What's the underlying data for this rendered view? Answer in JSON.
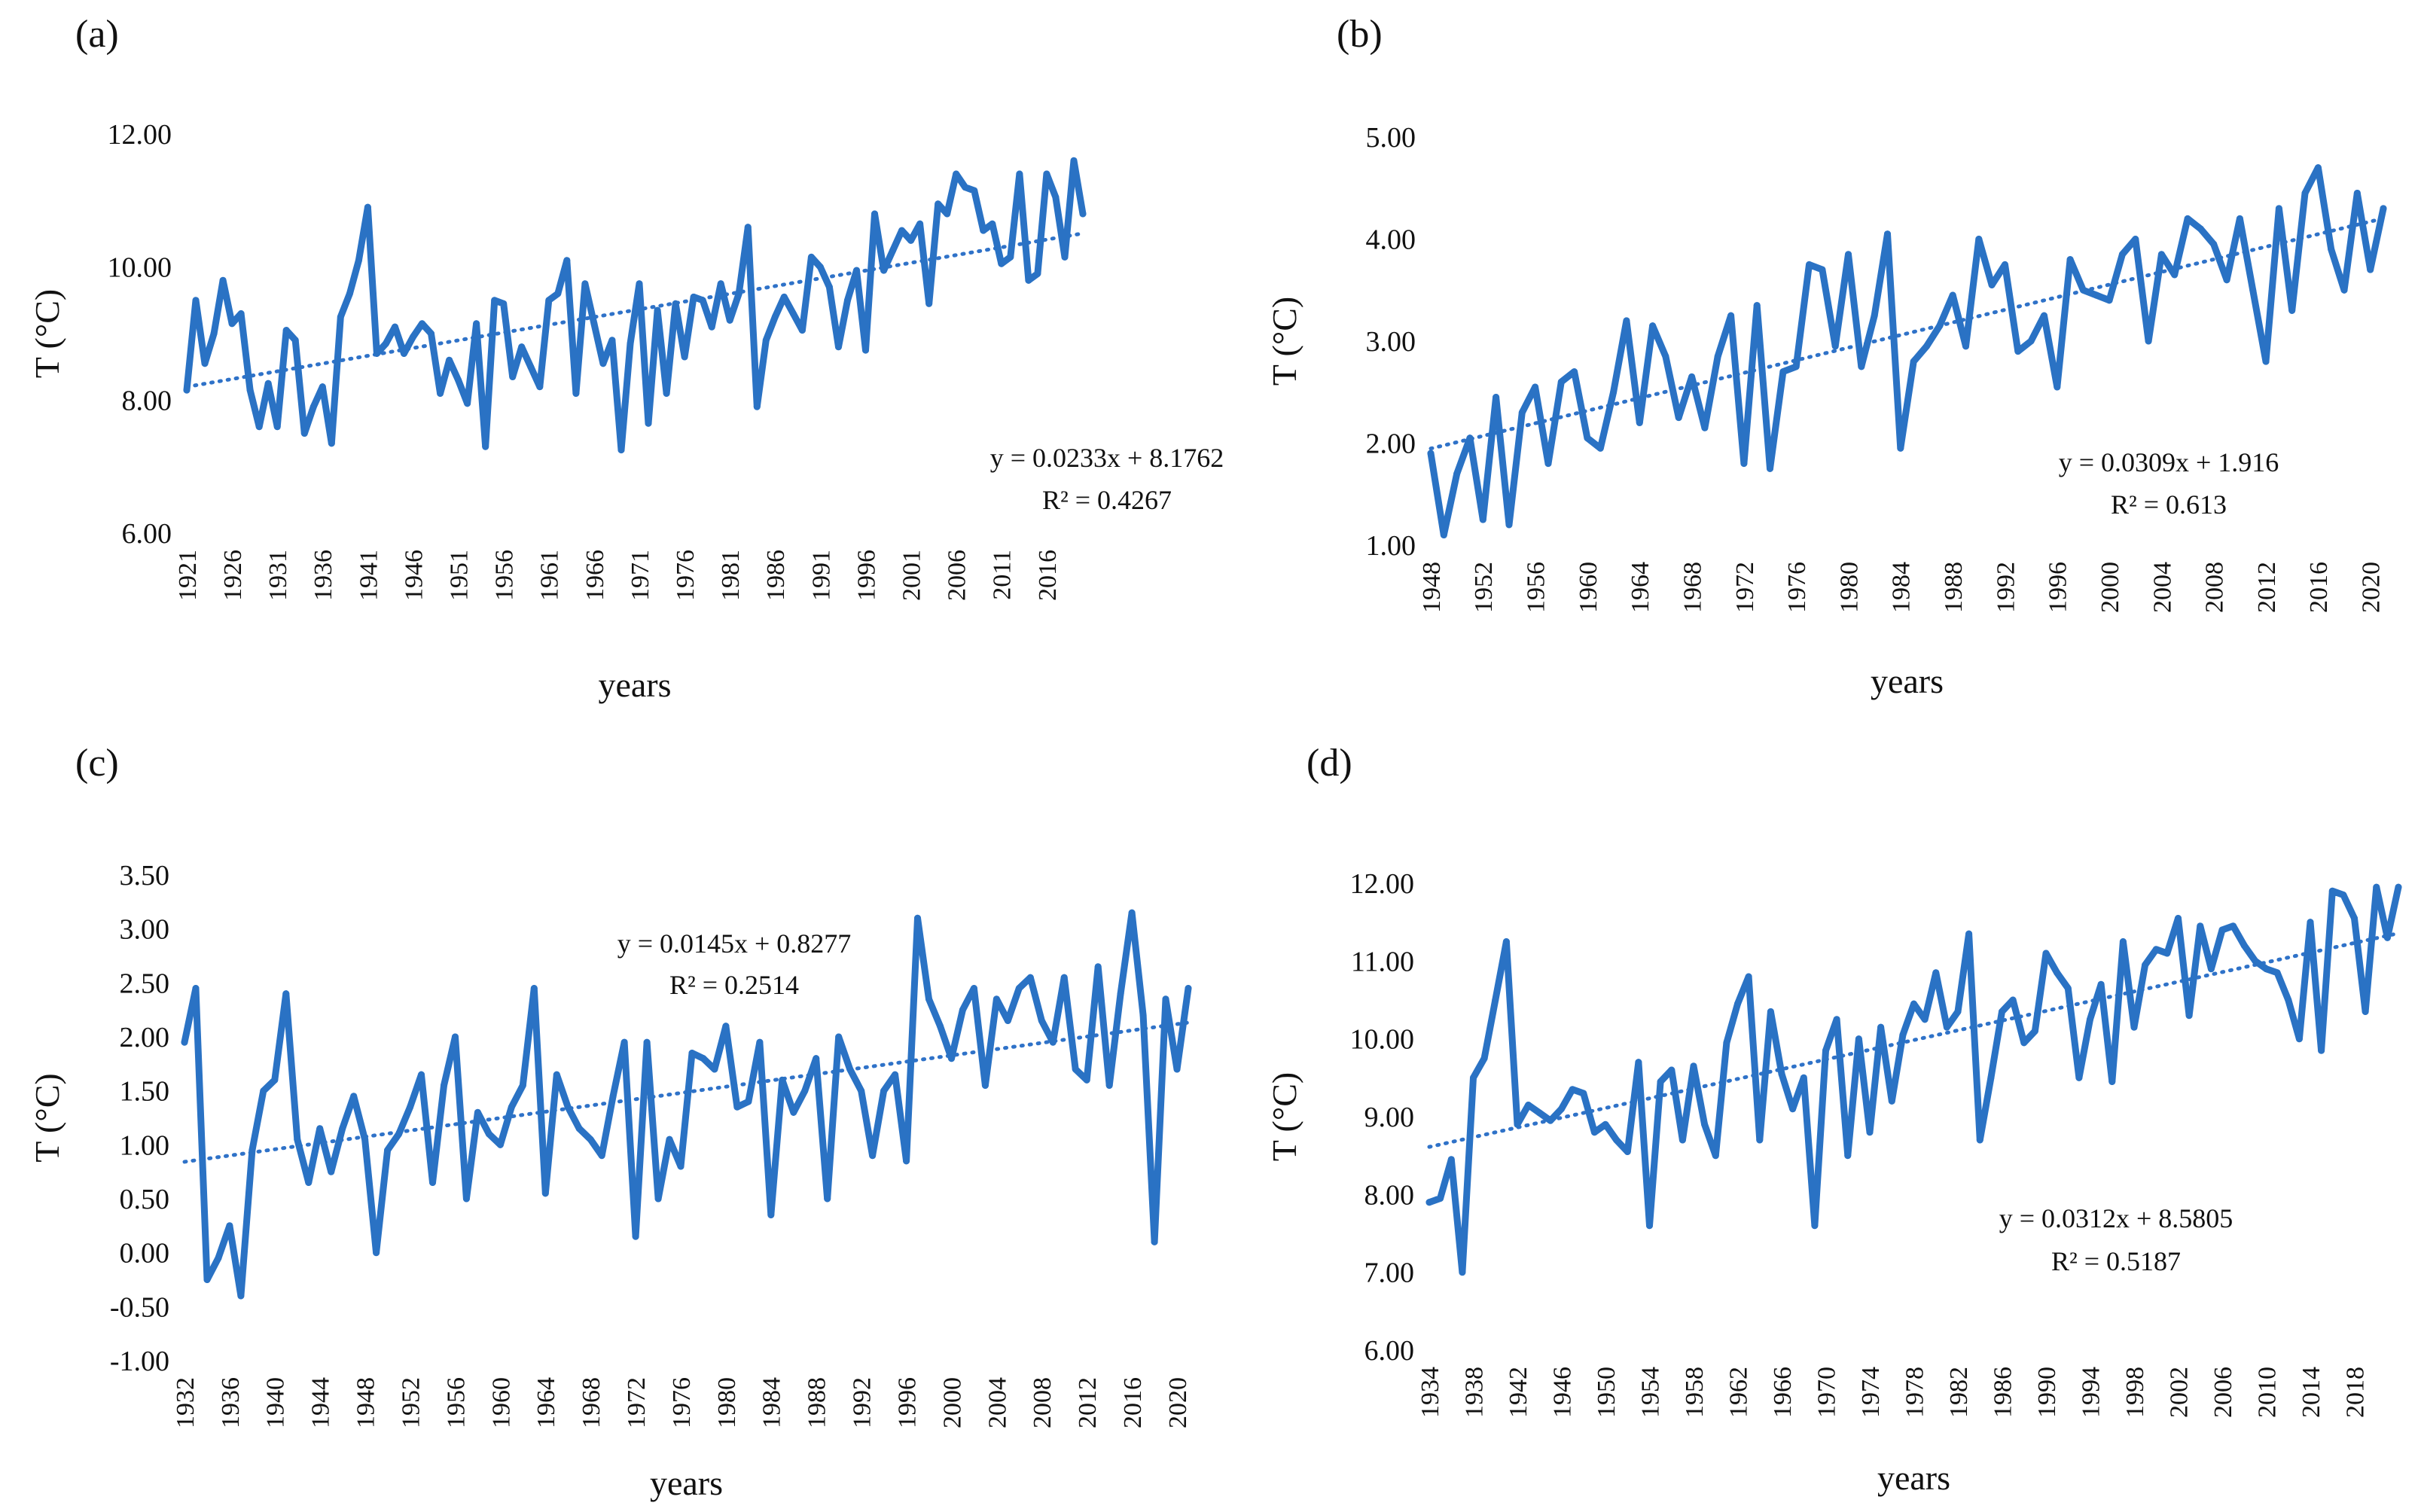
{
  "colors": {
    "series": "#2a72c4",
    "trend": "#2f72c8",
    "text": "#111111"
  },
  "chart_data": [
    {
      "type": "line",
      "panel_label": "(a)",
      "xlabel": "years",
      "ylabel": "T (°C)",
      "ylim": [
        6,
        12
      ],
      "y_ticks": [
        "6.00",
        "8.00",
        "10.00",
        "12.00"
      ],
      "x_start": 1921,
      "x_ticks": [
        "1921",
        "1926",
        "1931",
        "1936",
        "1941",
        "1946",
        "1951",
        "1956",
        "1961",
        "1966",
        "1971",
        "1976",
        "1981",
        "1986",
        "1991",
        "1996",
        "2001",
        "2006",
        "2011",
        "2016"
      ],
      "trendline": {
        "slope": 0.0233,
        "intercept": 8.1762,
        "equation": "y = 0.0233x + 8.1762",
        "r2": "R² = 0.4267"
      },
      "values": [
        8.15,
        9.5,
        8.55,
        9.0,
        9.8,
        9.15,
        9.3,
        8.15,
        7.6,
        8.25,
        7.6,
        9.05,
        8.9,
        7.5,
        7.9,
        8.2,
        7.35,
        9.25,
        9.6,
        10.1,
        10.9,
        8.7,
        8.85,
        9.1,
        8.7,
        8.95,
        9.15,
        9.0,
        8.1,
        8.6,
        8.3,
        7.95,
        9.15,
        7.3,
        9.5,
        9.45,
        8.35,
        8.8,
        8.5,
        8.2,
        9.5,
        9.6,
        10.1,
        8.1,
        9.75,
        9.15,
        8.55,
        8.9,
        7.25,
        8.85,
        9.75,
        7.65,
        9.35,
        8.1,
        9.45,
        8.65,
        9.55,
        9.5,
        9.1,
        9.75,
        9.2,
        9.6,
        10.6,
        7.9,
        8.9,
        9.25,
        9.55,
        9.3,
        9.05,
        10.15,
        10.0,
        9.7,
        8.8,
        9.5,
        9.95,
        8.75,
        10.8,
        9.95,
        10.25,
        10.55,
        10.4,
        10.65,
        9.45,
        10.95,
        10.8,
        11.4,
        11.2,
        11.15,
        10.55,
        10.65,
        10.05,
        10.15,
        11.4,
        9.8,
        9.9,
        11.4,
        11.05,
        10.15,
        11.6,
        10.8
      ]
    },
    {
      "type": "line",
      "panel_label": "(b)",
      "xlabel": "years",
      "ylabel": "T (°C)",
      "ylim": [
        1,
        5
      ],
      "y_ticks": [
        "1.00",
        "2.00",
        "3.00",
        "4.00",
        "5.00"
      ],
      "x_start": 1948,
      "x_ticks": [
        "1948",
        "1952",
        "1956",
        "1960",
        "1964",
        "1968",
        "1972",
        "1976",
        "1980",
        "1984",
        "1988",
        "1992",
        "1996",
        "2000",
        "2004",
        "2008",
        "2012",
        "2016",
        "2020"
      ],
      "trendline": {
        "slope": 0.0309,
        "intercept": 1.916,
        "equation": "y = 0.0309x + 1.916",
        "r2": "R² = 0.613"
      },
      "values": [
        1.9,
        1.1,
        1.7,
        2.05,
        1.25,
        2.45,
        1.2,
        2.3,
        2.55,
        1.8,
        2.6,
        2.7,
        2.05,
        1.95,
        2.5,
        3.2,
        2.2,
        3.15,
        2.85,
        2.25,
        2.65,
        2.15,
        2.85,
        3.25,
        1.8,
        3.35,
        1.75,
        2.7,
        2.75,
        3.75,
        3.7,
        2.95,
        3.85,
        2.75,
        3.25,
        4.05,
        1.95,
        2.8,
        2.95,
        3.15,
        3.45,
        2.95,
        4.0,
        3.55,
        3.75,
        2.9,
        3.0,
        3.25,
        2.55,
        3.8,
        3.5,
        3.45,
        3.4,
        3.85,
        4.0,
        3.0,
        3.85,
        3.65,
        4.2,
        4.1,
        3.95,
        3.6,
        4.2,
        3.5,
        2.8,
        4.3,
        3.3,
        4.45,
        4.7,
        3.9,
        3.5,
        4.45,
        3.7,
        4.3
      ]
    },
    {
      "type": "line",
      "panel_label": "(c)",
      "xlabel": "years",
      "ylabel": "T (°C)",
      "ylim": [
        -1,
        3.5
      ],
      "y_ticks": [
        "-1.00",
        "-0.50",
        "0.00",
        "0.50",
        "1.00",
        "1.50",
        "2.00",
        "2.50",
        "3.00",
        "3.50"
      ],
      "x_start": 1932,
      "x_ticks": [
        "1932",
        "1936",
        "1940",
        "1944",
        "1948",
        "1952",
        "1956",
        "1960",
        "1964",
        "1968",
        "1972",
        "1976",
        "1980",
        "1984",
        "1988",
        "1992",
        "1996",
        "2000",
        "2004",
        "2008",
        "2012",
        "2016",
        "2020"
      ],
      "trendline": {
        "slope": 0.0145,
        "intercept": 0.8277,
        "equation": "y = 0.0145x + 0.8277",
        "r2": "R² = 0.2514"
      },
      "values": [
        1.95,
        2.45,
        -0.25,
        -0.05,
        0.25,
        -0.4,
        0.95,
        1.5,
        1.6,
        2.4,
        1.05,
        0.65,
        1.15,
        0.75,
        1.15,
        1.45,
        1.05,
        0.0,
        0.95,
        1.1,
        1.35,
        1.65,
        0.65,
        1.55,
        2.0,
        0.5,
        1.3,
        1.1,
        1.0,
        1.35,
        1.55,
        2.45,
        0.55,
        1.65,
        1.35,
        1.15,
        1.05,
        0.9,
        1.45,
        1.95,
        0.15,
        1.95,
        0.5,
        1.05,
        0.8,
        1.85,
        1.8,
        1.7,
        2.1,
        1.35,
        1.4,
        1.95,
        0.35,
        1.6,
        1.3,
        1.5,
        1.8,
        0.5,
        2.0,
        1.7,
        1.5,
        0.9,
        1.5,
        1.65,
        0.85,
        3.1,
        2.35,
        2.1,
        1.8,
        2.25,
        2.45,
        1.55,
        2.35,
        2.15,
        2.45,
        2.55,
        2.15,
        1.95,
        2.55,
        1.7,
        1.6,
        2.65,
        1.55,
        2.4,
        3.15,
        2.2,
        0.1,
        2.35,
        1.7,
        2.45
      ]
    },
    {
      "type": "line",
      "panel_label": "(d)",
      "xlabel": "years",
      "ylabel": "T (°C)",
      "ylim": [
        6,
        12
      ],
      "y_ticks": [
        "6.00",
        "7.00",
        "8.00",
        "9.00",
        "10.00",
        "11.00",
        "12.00"
      ],
      "x_start": 1934,
      "x_ticks": [
        "1934",
        "1938",
        "1942",
        "1946",
        "1950",
        "1954",
        "1958",
        "1962",
        "1966",
        "1970",
        "1974",
        "1978",
        "1982",
        "1986",
        "1990",
        "1994",
        "1998",
        "2002",
        "2006",
        "2010",
        "2014",
        "2018"
      ],
      "trendline": {
        "slope": 0.0312,
        "intercept": 8.5805,
        "equation": "y = 0.0312x + 8.5805",
        "r2": "R² = 0.5187"
      },
      "values": [
        7.9,
        7.95,
        8.45,
        7.0,
        9.5,
        9.75,
        10.5,
        11.25,
        8.9,
        9.15,
        9.05,
        8.95,
        9.1,
        9.35,
        9.3,
        8.8,
        8.9,
        8.7,
        8.55,
        9.7,
        7.6,
        9.45,
        9.6,
        8.7,
        9.65,
        8.9,
        8.5,
        9.95,
        10.45,
        10.8,
        8.7,
        10.35,
        9.55,
        9.1,
        9.5,
        7.6,
        9.85,
        10.25,
        8.5,
        10.0,
        8.8,
        10.15,
        9.2,
        10.05,
        10.45,
        10.25,
        10.85,
        10.15,
        10.35,
        11.35,
        8.7,
        9.5,
        10.35,
        10.5,
        9.95,
        10.1,
        11.1,
        10.85,
        10.65,
        9.5,
        10.25,
        10.7,
        9.45,
        11.25,
        10.15,
        10.95,
        11.15,
        11.1,
        11.55,
        10.3,
        11.45,
        10.9,
        11.4,
        11.45,
        11.2,
        11.0,
        10.9,
        10.85,
        10.5,
        10.0,
        11.5,
        9.85,
        11.9,
        11.85,
        11.55,
        10.35,
        11.95,
        11.3,
        11.95
      ]
    }
  ]
}
